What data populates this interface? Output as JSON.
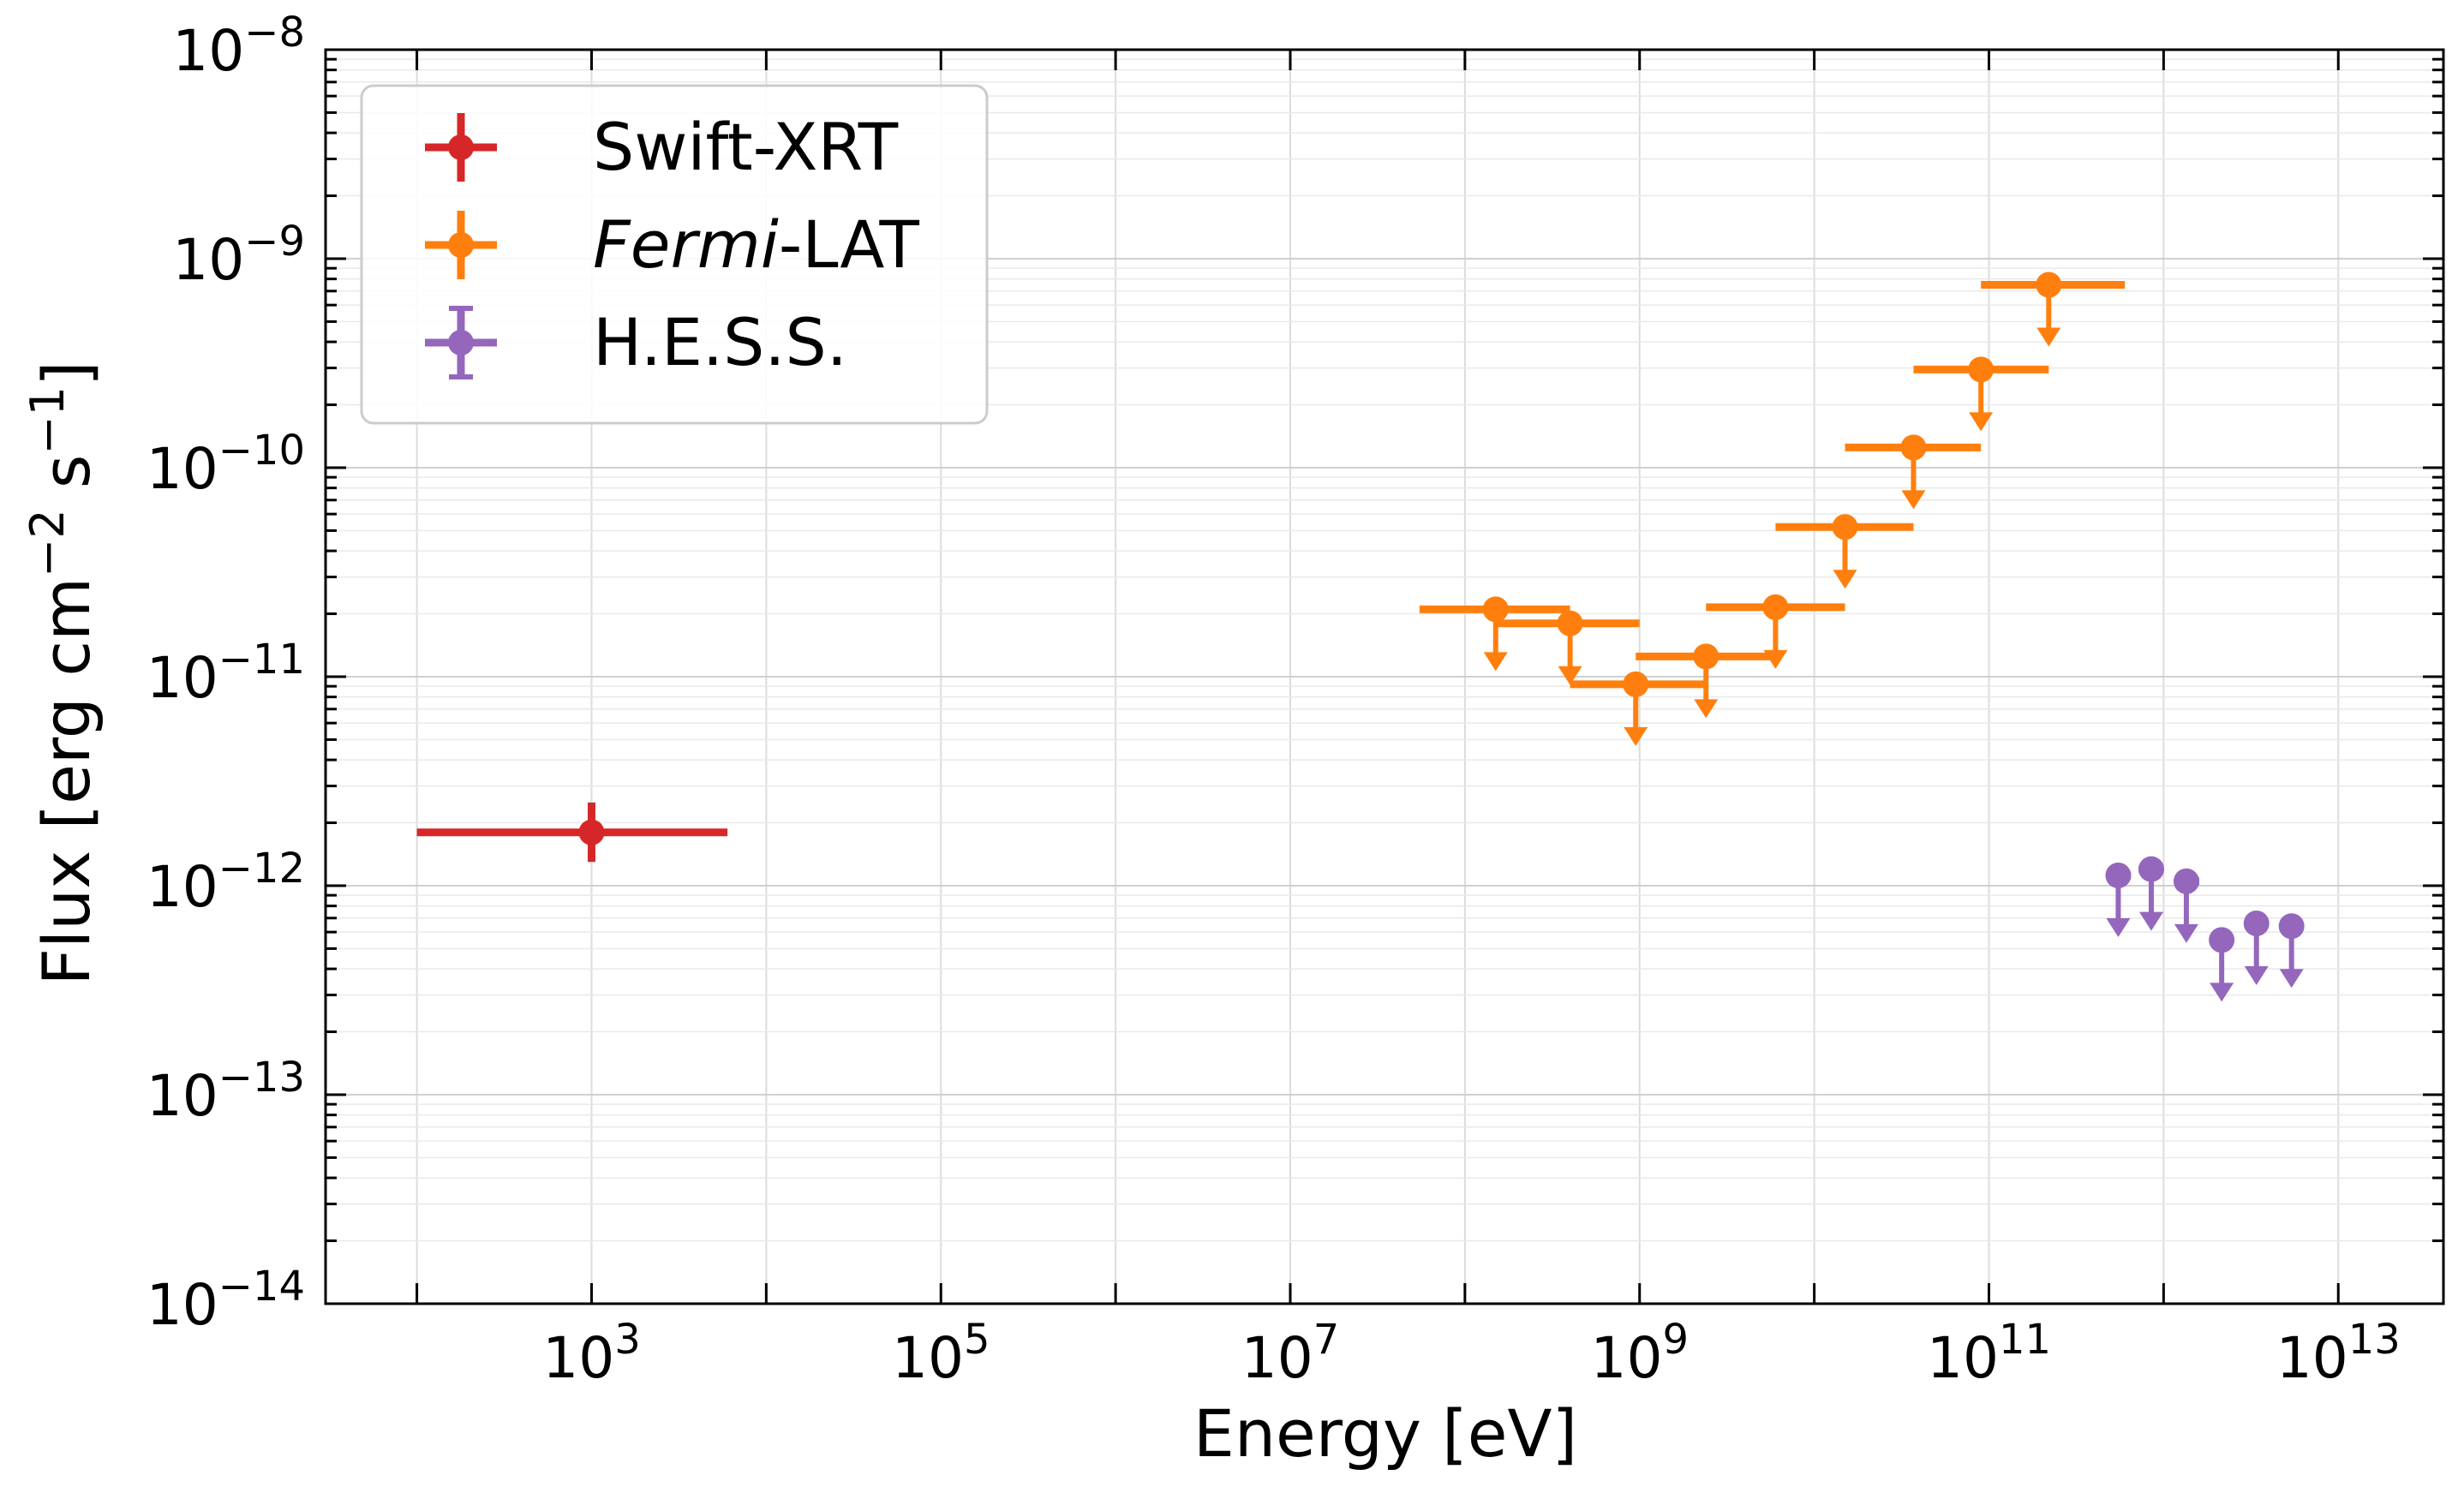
{
  "chart_data": {
    "type": "scatter",
    "xscale": "log",
    "yscale": "log",
    "xlabel": "Energy [eV]",
    "ylabel_parts": {
      "base": "Flux [erg cm",
      "exp1": "−2",
      "mid": " s",
      "exp2": "−1",
      "end": "]"
    },
    "xlim": [
      30,
      40000000000000
    ],
    "ylim": [
      1e-14,
      1e-08
    ],
    "grid": true,
    "x_ticks": [
      {
        "value": 1000,
        "base": "10",
        "exp": "3"
      },
      {
        "value": 100000,
        "base": "10",
        "exp": "5"
      },
      {
        "value": 10000000,
        "base": "10",
        "exp": "7"
      },
      {
        "value": 1000000000,
        "base": "10",
        "exp": "9"
      },
      {
        "value": 100000000000,
        "base": "10",
        "exp": "11"
      },
      {
        "value": 10000000000000,
        "base": "10",
        "exp": "13"
      }
    ],
    "y_ticks": [
      {
        "value": 1e-08,
        "base": "10",
        "exp": "−8"
      },
      {
        "value": 1e-09,
        "base": "10",
        "exp": "−9"
      },
      {
        "value": 1e-10,
        "base": "10",
        "exp": "−10"
      },
      {
        "value": 1e-11,
        "base": "10",
        "exp": "−11"
      },
      {
        "value": 1e-12,
        "base": "10",
        "exp": "−12"
      },
      {
        "value": 1e-13,
        "base": "10",
        "exp": "−13"
      },
      {
        "value": 1e-14,
        "base": "10",
        "exp": "−14"
      }
    ],
    "legend": {
      "position": "upper-left",
      "entries": [
        {
          "series": "swift",
          "label": "Swift-XRT",
          "italic_part": "",
          "rest": ""
        },
        {
          "series": "fermi",
          "label": "",
          "italic_part": "Fermi",
          "rest": "-LAT"
        },
        {
          "series": "hess",
          "label": "H.E.S.S.",
          "italic_part": "",
          "rest": ""
        }
      ]
    },
    "series": [
      {
        "id": "swift",
        "name": "Swift-XRT",
        "color": "#d62728",
        "upper_limits": false,
        "points": [
          {
            "x": 1000,
            "xlo": 100,
            "xhi": 6000,
            "y": 1.8e-12,
            "ylo": 1.3e-12,
            "yhi": 2.5e-12
          }
        ]
      },
      {
        "id": "fermi",
        "name": "Fermi-LAT",
        "color": "#ff7f0e",
        "upper_limits": true,
        "points": [
          {
            "x": 150000000,
            "xlo": 55000000,
            "xhi": 400000000,
            "y": 2.1e-11
          },
          {
            "x": 400000000,
            "xlo": 150000000,
            "xhi": 1000000000,
            "y": 1.8e-11
          },
          {
            "x": 950000000,
            "xlo": 400000000,
            "xhi": 2400000000,
            "y": 9.2e-12
          },
          {
            "x": 2400000000,
            "xlo": 950000000,
            "xhi": 6000000000,
            "y": 1.25e-11
          },
          {
            "x": 6000000000,
            "xlo": 2400000000,
            "xhi": 15000000000,
            "y": 2.15e-11
          },
          {
            "x": 15000000000,
            "xlo": 6000000000,
            "xhi": 37000000000,
            "y": 5.2e-11
          },
          {
            "x": 37000000000,
            "xlo": 15000000000,
            "xhi": 90000000000,
            "y": 1.25e-10
          },
          {
            "x": 90000000000,
            "xlo": 37000000000,
            "xhi": 220000000000,
            "y": 2.95e-10
          },
          {
            "x": 220000000000,
            "xlo": 90000000000,
            "xhi": 600000000000,
            "y": 7.5e-10
          }
        ]
      },
      {
        "id": "hess",
        "name": "H.E.S.S.",
        "color": "#9467bd",
        "upper_limits": true,
        "points": [
          {
            "x": 550000000000,
            "xlo": 470000000000,
            "xhi": 650000000000,
            "y": 1.12e-12
          },
          {
            "x": 850000000000,
            "xlo": 720000000000,
            "xhi": 1000000000000,
            "y": 1.2e-12
          },
          {
            "x": 1350000000000,
            "xlo": 1150000000000,
            "xhi": 1600000000000,
            "y": 1.05e-12
          },
          {
            "x": 2150000000000,
            "xlo": 1850000000000,
            "xhi": 2500000000000,
            "y": 5.5e-13
          },
          {
            "x": 3400000000000,
            "xlo": 2900000000000,
            "xhi": 4000000000000,
            "y": 6.6e-13
          },
          {
            "x": 5400000000000,
            "xlo": 4600000000000,
            "xhi": 6300000000000,
            "y": 6.4e-13
          }
        ]
      }
    ]
  }
}
